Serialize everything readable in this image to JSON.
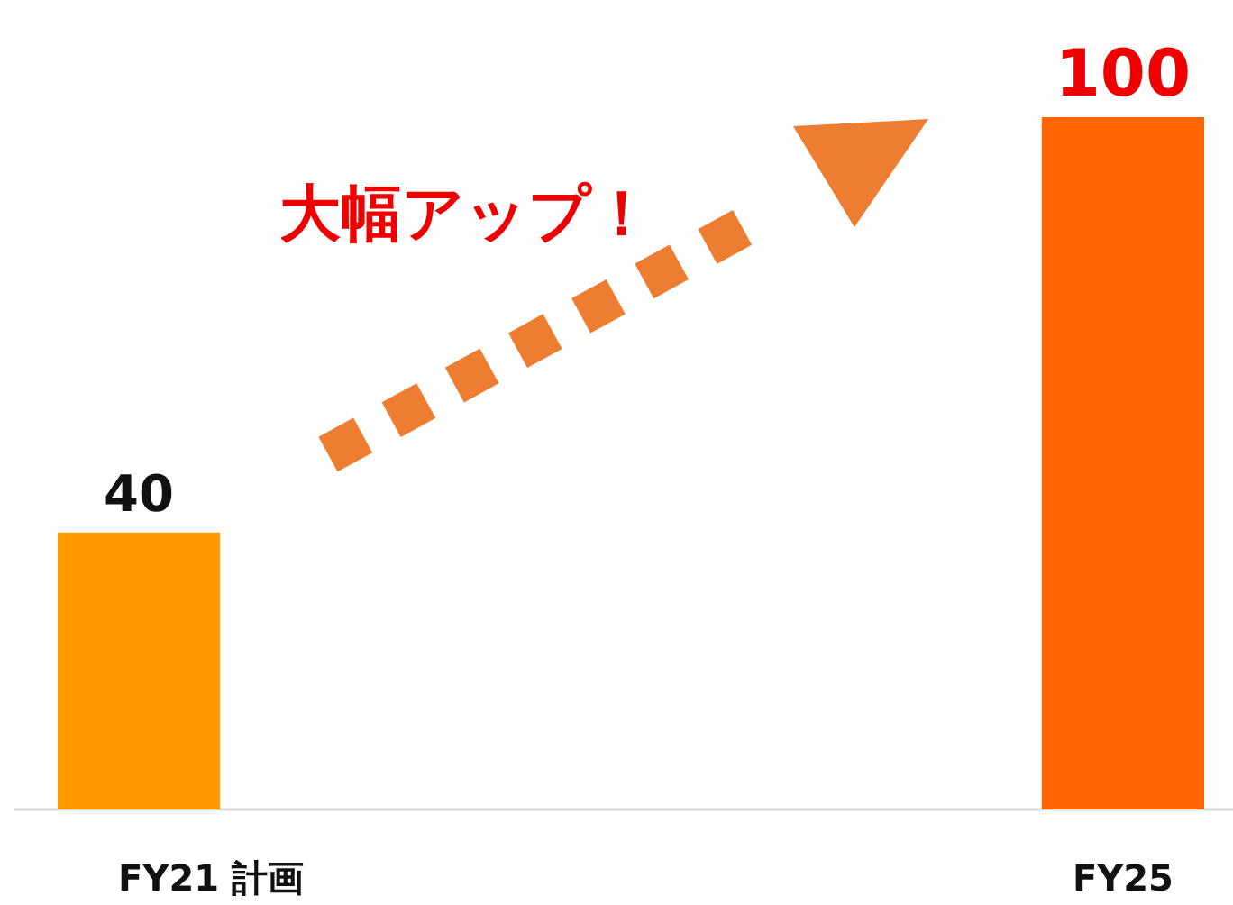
{
  "chart_data": {
    "type": "bar",
    "categories": [
      "FY21 計画",
      "FY25"
    ],
    "values": [
      40,
      100
    ],
    "colors": [
      "#ff9900",
      "#ff6600"
    ],
    "ylim": [
      0,
      100
    ],
    "data_labels": true,
    "tick_labels": "x",
    "annotations": [
      "大幅アップ！"
    ]
  }
}
